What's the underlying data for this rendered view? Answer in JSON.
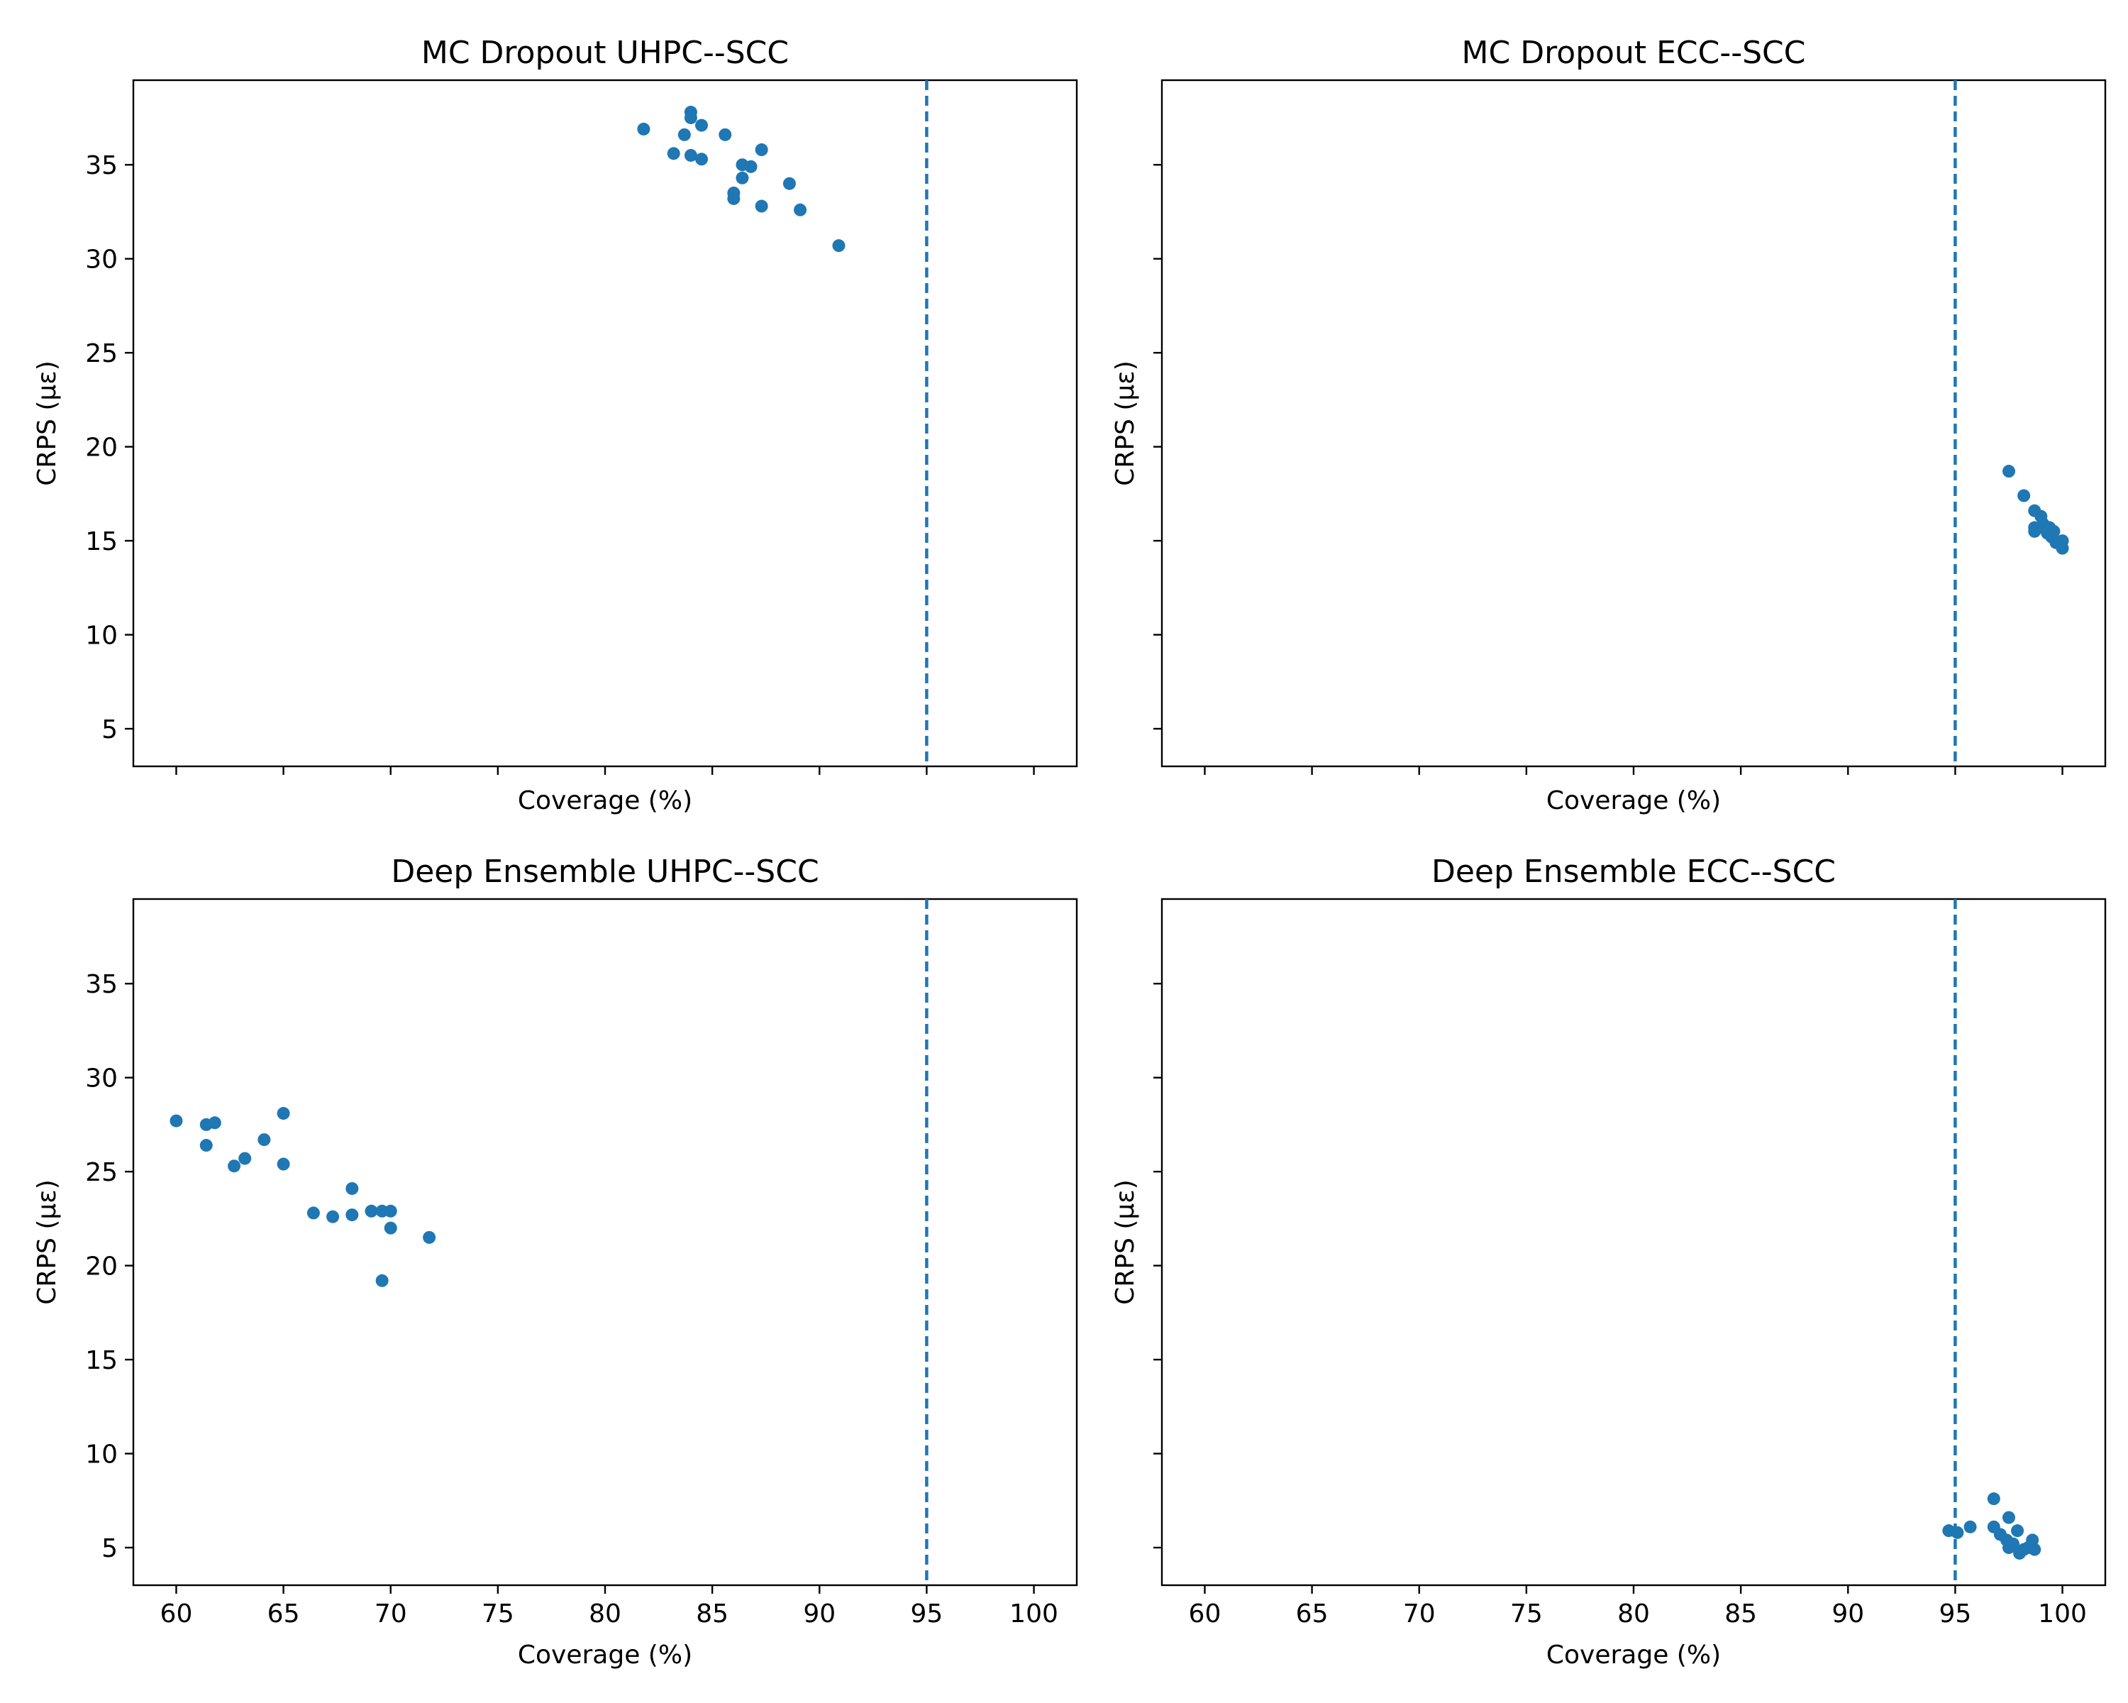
{
  "chart_data": [
    {
      "type": "scatter",
      "title": "MC Dropout UHPC--SCC",
      "xlabel": "Coverage (%)",
      "ylabel": "CRPS (με)",
      "xlim": [
        58,
        102
      ],
      "ylim": [
        3,
        39.5
      ],
      "xticks": [
        60,
        65,
        70,
        75,
        80,
        85,
        90,
        95,
        100
      ],
      "yticks": [
        5,
        10,
        15,
        20,
        25,
        30,
        35
      ],
      "show_xtick_labels": false,
      "show_ytick_labels": true,
      "reference_x": 95,
      "grid": false,
      "points": [
        {
          "x": 81.8,
          "y": 36.9
        },
        {
          "x": 83.2,
          "y": 35.6
        },
        {
          "x": 83.7,
          "y": 36.6
        },
        {
          "x": 84.0,
          "y": 37.8
        },
        {
          "x": 84.0,
          "y": 37.5
        },
        {
          "x": 84.0,
          "y": 35.5
        },
        {
          "x": 84.5,
          "y": 37.1
        },
        {
          "x": 84.5,
          "y": 35.3
        },
        {
          "x": 85.6,
          "y": 36.6
        },
        {
          "x": 86.0,
          "y": 33.5
        },
        {
          "x": 86.0,
          "y": 33.2
        },
        {
          "x": 86.4,
          "y": 35.0
        },
        {
          "x": 86.4,
          "y": 34.3
        },
        {
          "x": 86.8,
          "y": 34.9
        },
        {
          "x": 87.3,
          "y": 35.8
        },
        {
          "x": 87.3,
          "y": 32.8
        },
        {
          "x": 88.6,
          "y": 34.0
        },
        {
          "x": 89.1,
          "y": 32.6
        },
        {
          "x": 90.9,
          "y": 30.7
        }
      ]
    },
    {
      "type": "scatter",
      "title": "MC Dropout ECC--SCC",
      "xlabel": "Coverage (%)",
      "ylabel": "CRPS (με)",
      "xlim": [
        58,
        102
      ],
      "ylim": [
        3,
        39.5
      ],
      "xticks": [
        60,
        65,
        70,
        75,
        80,
        85,
        90,
        95,
        100
      ],
      "yticks": [
        5,
        10,
        15,
        20,
        25,
        30,
        35
      ],
      "show_xtick_labels": false,
      "show_ytick_labels": false,
      "reference_x": 95,
      "grid": false,
      "points": [
        {
          "x": 97.5,
          "y": 18.7
        },
        {
          "x": 98.2,
          "y": 17.4
        },
        {
          "x": 98.7,
          "y": 16.6
        },
        {
          "x": 98.7,
          "y": 15.7
        },
        {
          "x": 98.7,
          "y": 15.5
        },
        {
          "x": 99.0,
          "y": 16.3
        },
        {
          "x": 99.1,
          "y": 15.9
        },
        {
          "x": 99.2,
          "y": 15.6
        },
        {
          "x": 99.3,
          "y": 15.4
        },
        {
          "x": 99.4,
          "y": 15.7
        },
        {
          "x": 99.5,
          "y": 15.2
        },
        {
          "x": 99.6,
          "y": 15.5
        },
        {
          "x": 99.7,
          "y": 14.9
        },
        {
          "x": 100.0,
          "y": 15.0
        },
        {
          "x": 100.0,
          "y": 14.6
        }
      ]
    },
    {
      "type": "scatter",
      "title": "Deep Ensemble UHPC--SCC",
      "xlabel": "Coverage (%)",
      "ylabel": "CRPS (με)",
      "xlim": [
        58,
        102
      ],
      "ylim": [
        3,
        39.5
      ],
      "xticks": [
        60,
        65,
        70,
        75,
        80,
        85,
        90,
        95,
        100
      ],
      "yticks": [
        5,
        10,
        15,
        20,
        25,
        30,
        35
      ],
      "show_xtick_labels": true,
      "show_ytick_labels": true,
      "reference_x": 95,
      "grid": false,
      "points": [
        {
          "x": 60.0,
          "y": 27.7
        },
        {
          "x": 61.4,
          "y": 27.5
        },
        {
          "x": 61.4,
          "y": 26.4
        },
        {
          "x": 61.8,
          "y": 27.6
        },
        {
          "x": 62.7,
          "y": 25.3
        },
        {
          "x": 63.2,
          "y": 25.7
        },
        {
          "x": 64.1,
          "y": 26.7
        },
        {
          "x": 65.0,
          "y": 28.1
        },
        {
          "x": 65.0,
          "y": 25.4
        },
        {
          "x": 66.4,
          "y": 22.8
        },
        {
          "x": 67.3,
          "y": 22.6
        },
        {
          "x": 68.2,
          "y": 24.1
        },
        {
          "x": 68.2,
          "y": 22.7
        },
        {
          "x": 69.1,
          "y": 22.9
        },
        {
          "x": 69.6,
          "y": 22.9
        },
        {
          "x": 69.6,
          "y": 19.2
        },
        {
          "x": 70.0,
          "y": 22.9
        },
        {
          "x": 70.0,
          "y": 22.0
        },
        {
          "x": 71.8,
          "y": 21.5
        }
      ]
    },
    {
      "type": "scatter",
      "title": "Deep Ensemble ECC--SCC",
      "xlabel": "Coverage (%)",
      "ylabel": "CRPS (με)",
      "xlim": [
        58,
        102
      ],
      "ylim": [
        3,
        39.5
      ],
      "xticks": [
        60,
        65,
        70,
        75,
        80,
        85,
        90,
        95,
        100
      ],
      "yticks": [
        5,
        10,
        15,
        20,
        25,
        30,
        35
      ],
      "show_xtick_labels": true,
      "show_ytick_labels": false,
      "reference_x": 95,
      "grid": false,
      "points": [
        {
          "x": 94.7,
          "y": 5.9
        },
        {
          "x": 95.1,
          "y": 5.8
        },
        {
          "x": 95.7,
          "y": 6.1
        },
        {
          "x": 96.8,
          "y": 7.6
        },
        {
          "x": 96.8,
          "y": 6.1
        },
        {
          "x": 97.1,
          "y": 5.7
        },
        {
          "x": 97.4,
          "y": 5.4
        },
        {
          "x": 97.5,
          "y": 6.6
        },
        {
          "x": 97.5,
          "y": 5.0
        },
        {
          "x": 97.7,
          "y": 5.2
        },
        {
          "x": 97.9,
          "y": 5.9
        },
        {
          "x": 98.0,
          "y": 4.7
        },
        {
          "x": 98.2,
          "y": 4.9
        },
        {
          "x": 98.4,
          "y": 5.0
        },
        {
          "x": 98.6,
          "y": 5.4
        },
        {
          "x": 98.6,
          "y": 5.0
        },
        {
          "x": 98.7,
          "y": 4.9
        }
      ]
    }
  ],
  "colors": {
    "marker": "#1f77b4",
    "reference_line": "#1f77b4"
  }
}
